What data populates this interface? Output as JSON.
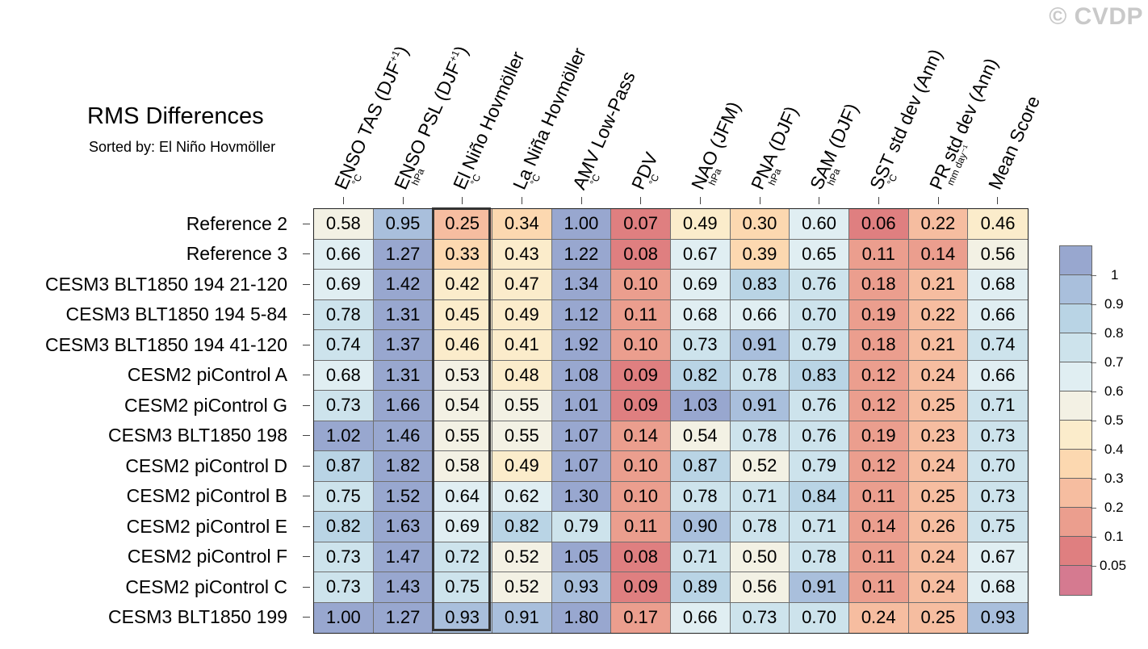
{
  "watermark": "© CVDP",
  "chart_data": {
    "type": "heatmap",
    "title": "RMS Differences",
    "subtitle": "Sorted by: El Niño Hovmöller",
    "highlighted_column": "El Niño Hovmöller",
    "columns": [
      {
        "name": "ENSO TAS (DJF",
        "sup": "+1",
        "close": ")",
        "unit": "°C"
      },
      {
        "name": "ENSO PSL (DJF",
        "sup": "+1",
        "close": ")",
        "unit": "hPa"
      },
      {
        "name": "El Niño Hovmöller",
        "sup": "",
        "close": "",
        "unit": "°C"
      },
      {
        "name": "La Niña Hovmöller",
        "sup": "",
        "close": "",
        "unit": "°C"
      },
      {
        "name": "AMV Low-Pass",
        "sup": "",
        "close": "",
        "unit": "°C"
      },
      {
        "name": "PDV",
        "sup": "",
        "close": "",
        "unit": "°C"
      },
      {
        "name": "NAO (JFM)",
        "sup": "",
        "close": "",
        "unit": "hPa"
      },
      {
        "name": "PNA (DJF)",
        "sup": "",
        "close": "",
        "unit": "hPa"
      },
      {
        "name": "SAM (DJF)",
        "sup": "",
        "close": "",
        "unit": "hPa"
      },
      {
        "name": "SST std dev (Ann)",
        "sup": "",
        "close": "",
        "unit": "°C"
      },
      {
        "name": "PR std dev (Ann)",
        "sup": "",
        "close": "",
        "unit": "mm day⁻¹"
      },
      {
        "name": "Mean Score",
        "sup": "",
        "close": "",
        "unit": ""
      }
    ],
    "rows": [
      "Reference 2",
      "Reference 3",
      "CESM3 BLT1850 194 21-120",
      "CESM3 BLT1850 194 5-84",
      "CESM3 BLT1850 194 41-120",
      "CESM2 piControl A",
      "CESM2 piControl G",
      "CESM3 BLT1850 198",
      "CESM2 piControl D",
      "CESM2 piControl B",
      "CESM2 piControl E",
      "CESM2 piControl F",
      "CESM2 piControl C",
      "CESM3 BLT1850 199"
    ],
    "values": [
      [
        "0.58",
        "0.95",
        "0.25",
        "0.34",
        "1.00",
        "0.07",
        "0.49",
        "0.30",
        "0.60",
        "0.06",
        "0.22",
        "0.46"
      ],
      [
        "0.66",
        "1.27",
        "0.33",
        "0.43",
        "1.22",
        "0.08",
        "0.67",
        "0.39",
        "0.65",
        "0.11",
        "0.14",
        "0.56"
      ],
      [
        "0.69",
        "1.42",
        "0.42",
        "0.47",
        "1.34",
        "0.10",
        "0.69",
        "0.83",
        "0.76",
        "0.18",
        "0.21",
        "0.68"
      ],
      [
        "0.78",
        "1.31",
        "0.45",
        "0.49",
        "1.12",
        "0.11",
        "0.68",
        "0.66",
        "0.70",
        "0.19",
        "0.22",
        "0.66"
      ],
      [
        "0.74",
        "1.37",
        "0.46",
        "0.41",
        "1.92",
        "0.10",
        "0.73",
        "0.91",
        "0.79",
        "0.18",
        "0.21",
        "0.74"
      ],
      [
        "0.68",
        "1.31",
        "0.53",
        "0.48",
        "1.08",
        "0.09",
        "0.82",
        "0.78",
        "0.83",
        "0.12",
        "0.24",
        "0.66"
      ],
      [
        "0.73",
        "1.66",
        "0.54",
        "0.55",
        "1.01",
        "0.09",
        "1.03",
        "0.91",
        "0.76",
        "0.12",
        "0.25",
        "0.71"
      ],
      [
        "1.02",
        "1.46",
        "0.55",
        "0.55",
        "1.07",
        "0.14",
        "0.54",
        "0.78",
        "0.76",
        "0.19",
        "0.23",
        "0.73"
      ],
      [
        "0.87",
        "1.82",
        "0.58",
        "0.49",
        "1.07",
        "0.10",
        "0.87",
        "0.52",
        "0.79",
        "0.12",
        "0.24",
        "0.70"
      ],
      [
        "0.75",
        "1.52",
        "0.64",
        "0.62",
        "1.30",
        "0.10",
        "0.78",
        "0.71",
        "0.84",
        "0.11",
        "0.25",
        "0.73"
      ],
      [
        "0.82",
        "1.63",
        "0.69",
        "0.82",
        "0.79",
        "0.11",
        "0.90",
        "0.78",
        "0.71",
        "0.14",
        "0.26",
        "0.75"
      ],
      [
        "0.73",
        "1.47",
        "0.72",
        "0.52",
        "1.05",
        "0.08",
        "0.71",
        "0.50",
        "0.78",
        "0.11",
        "0.24",
        "0.67"
      ],
      [
        "0.73",
        "1.43",
        "0.75",
        "0.52",
        "0.93",
        "0.09",
        "0.89",
        "0.56",
        "0.91",
        "0.11",
        "0.24",
        "0.68"
      ],
      [
        "1.00",
        "1.27",
        "0.93",
        "0.91",
        "1.80",
        "0.17",
        "0.66",
        "0.73",
        "0.70",
        "0.24",
        "0.25",
        "0.93"
      ]
    ],
    "colorbar": {
      "labels": [
        "1",
        "0.9",
        "0.8",
        "0.7",
        "0.6",
        "0.5",
        "0.4",
        "0.3",
        "0.2",
        "0.1",
        "0.05"
      ],
      "colors": [
        "#98a7cf",
        "#a9bfdc",
        "#b9d4e5",
        "#cde3ec",
        "#e0eef2",
        "#f3f1e4",
        "#fbeccb",
        "#fcd8b0",
        "#f6bda0",
        "#eb9e8e",
        "#df7f80",
        "#d57a90"
      ]
    }
  }
}
